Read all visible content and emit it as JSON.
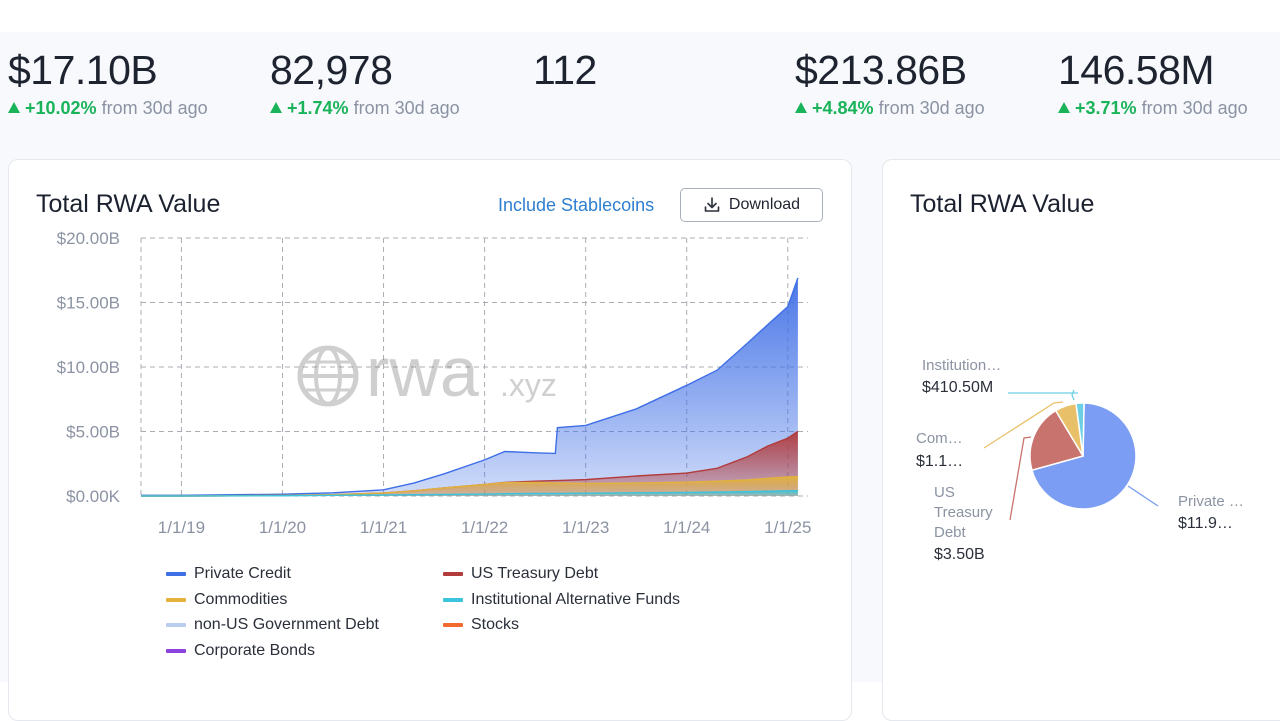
{
  "stats": [
    {
      "value": "$17.10B",
      "delta": "+10.02%",
      "from": "from 30d ago"
    },
    {
      "value": "82,978",
      "delta": "+1.74%",
      "from": "from 30d ago"
    },
    {
      "value": "112",
      "delta": "",
      "from": ""
    },
    {
      "value": "$213.86B",
      "delta": "+4.84%",
      "from": "from 30d ago"
    },
    {
      "value": "146.58M",
      "delta": "+3.71%",
      "from": "from 30d ago"
    }
  ],
  "area_card": {
    "title": "Total RWA Value",
    "include_stablecoins": "Include Stablecoins",
    "download_label": "Download",
    "watermark_text": "rwa",
    "watermark_suffix": ".xyz"
  },
  "pie_card": {
    "title": "Total RWA Value"
  },
  "legend": [
    {
      "label": "Private Credit",
      "color": "#3f6fe6"
    },
    {
      "label": "US Treasury Debt",
      "color": "#b23b3b"
    },
    {
      "label": "Commodities",
      "color": "#e2b23c"
    },
    {
      "label": "Institutional Alternative Funds",
      "color": "#3cc3dd"
    },
    {
      "label": "non-US Government Debt",
      "color": "#b9cdef"
    },
    {
      "label": "Stocks",
      "color": "#f26a2e"
    },
    {
      "label": "Corporate Bonds",
      "color": "#8b43e0"
    }
  ],
  "chart_data": [
    {
      "type": "area",
      "title": "Total RWA Value",
      "stacked": true,
      "xlabel": "",
      "ylabel": "",
      "x_ticks": [
        "1/1/19",
        "1/1/20",
        "1/1/21",
        "1/1/22",
        "1/1/23",
        "1/1/24",
        "1/1/25"
      ],
      "y_ticks": [
        "$0.00K",
        "$5.00B",
        "$10.00B",
        "$15.00B",
        "$20.00B"
      ],
      "ylim": [
        0,
        20
      ],
      "y_unit": "$B",
      "x": [
        2018.6,
        2019.0,
        2020.0,
        2020.5,
        2021.0,
        2021.3,
        2021.6,
        2022.0,
        2022.2,
        2022.5,
        2022.7,
        2022.72,
        2023.0,
        2023.5,
        2024.0,
        2024.3,
        2024.6,
        2024.8,
        2025.0,
        2025.1
      ],
      "series": [
        {
          "name": "Institutional Alternative Funds",
          "color": "#3cc3dd",
          "values": [
            0,
            0,
            0.02,
            0.05,
            0.08,
            0.1,
            0.12,
            0.15,
            0.18,
            0.2,
            0.2,
            0.2,
            0.22,
            0.25,
            0.28,
            0.3,
            0.34,
            0.37,
            0.4,
            0.41
          ]
        },
        {
          "name": "Commodities",
          "color": "#e2b23c",
          "values": [
            0,
            0,
            0.02,
            0.05,
            0.15,
            0.3,
            0.5,
            0.75,
            0.85,
            0.85,
            0.8,
            0.8,
            0.75,
            0.75,
            0.8,
            0.85,
            0.9,
            1.0,
            1.08,
            1.1
          ]
        },
        {
          "name": "US Treasury Debt",
          "color": "#b23b3b",
          "values": [
            0,
            0,
            0,
            0,
            0,
            0,
            0,
            0,
            0.02,
            0.1,
            0.2,
            0.2,
            0.3,
            0.55,
            0.7,
            1.0,
            1.8,
            2.5,
            3.0,
            3.5
          ]
        },
        {
          "name": "Private Credit",
          "color": "#3f6fe6",
          "values": [
            0.05,
            0.05,
            0.1,
            0.15,
            0.25,
            0.6,
            1.1,
            1.9,
            2.4,
            2.2,
            2.1,
            4.1,
            4.2,
            5.2,
            6.8,
            7.6,
            8.8,
            9.4,
            10.2,
            11.9
          ]
        }
      ]
    },
    {
      "type": "pie",
      "title": "Total RWA Value",
      "slices": [
        {
          "label": "Private Credit",
          "display_label": "Private …",
          "value_text": "$11.9…",
          "value": 11.9,
          "color": "#7b9ef4"
        },
        {
          "label": "US Treasury Debt",
          "display_label": "US Treasury Debt",
          "value_text": "$3.50B",
          "value": 3.5,
          "color": "#c9736e"
        },
        {
          "label": "Commodities",
          "display_label": "Com…",
          "value_text": "$1.1…",
          "value": 1.1,
          "color": "#e8c06a"
        },
        {
          "label": "Institutional Alternative Funds",
          "display_label": "Institution…",
          "value_text": "$410.50M",
          "value": 0.4105,
          "color": "#6ccfe3"
        }
      ]
    }
  ]
}
